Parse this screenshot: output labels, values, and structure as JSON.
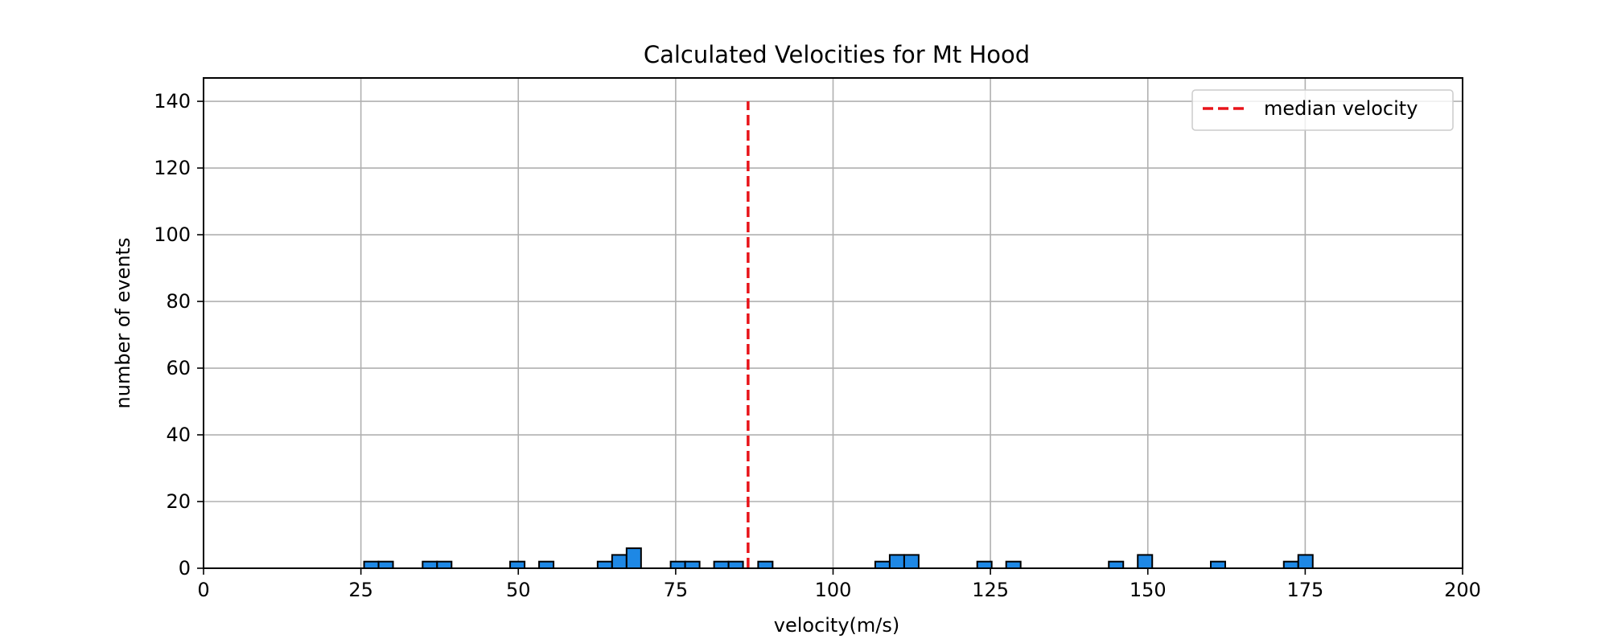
{
  "chart_data": {
    "type": "bar",
    "title": "Calculated Velocities for Mt Hood",
    "xlabel": "velocity(m/s)",
    "ylabel": "number of events",
    "xlim": [
      0,
      200
    ],
    "ylim": [
      0,
      147
    ],
    "xticks": [
      0,
      25,
      50,
      75,
      100,
      125,
      150,
      175,
      200
    ],
    "yticks": [
      0,
      20,
      40,
      60,
      80,
      100,
      120,
      140
    ],
    "grid": true,
    "bar_color": "#1e88e5",
    "bar_edge_color": "#000000",
    "bin_width": 2.3,
    "bins": [
      {
        "x": 25.5,
        "count": 2
      },
      {
        "x": 27.8,
        "count": 2
      },
      {
        "x": 34.8,
        "count": 2
      },
      {
        "x": 37.1,
        "count": 2
      },
      {
        "x": 48.7,
        "count": 2
      },
      {
        "x": 53.3,
        "count": 2
      },
      {
        "x": 62.6,
        "count": 2
      },
      {
        "x": 64.9,
        "count": 4
      },
      {
        "x": 67.2,
        "count": 6
      },
      {
        "x": 74.2,
        "count": 2
      },
      {
        "x": 76.5,
        "count": 2
      },
      {
        "x": 81.1,
        "count": 2
      },
      {
        "x": 83.4,
        "count": 2
      },
      {
        "x": 88.1,
        "count": 2
      },
      {
        "x": 106.7,
        "count": 2
      },
      {
        "x": 109.0,
        "count": 4
      },
      {
        "x": 111.3,
        "count": 4
      },
      {
        "x": 122.9,
        "count": 2
      },
      {
        "x": 127.5,
        "count": 2
      },
      {
        "x": 143.8,
        "count": 2
      },
      {
        "x": 148.4,
        "count": 4
      },
      {
        "x": 160.0,
        "count": 2
      },
      {
        "x": 171.6,
        "count": 2
      },
      {
        "x": 173.9,
        "count": 4
      }
    ],
    "median_velocity": {
      "x": 86.5,
      "y_range": [
        0,
        140
      ],
      "color": "#e8141a",
      "style": "dashed",
      "label": "median velocity"
    },
    "legend": {
      "placement": "upper right",
      "entries": [
        "median velocity"
      ]
    }
  }
}
